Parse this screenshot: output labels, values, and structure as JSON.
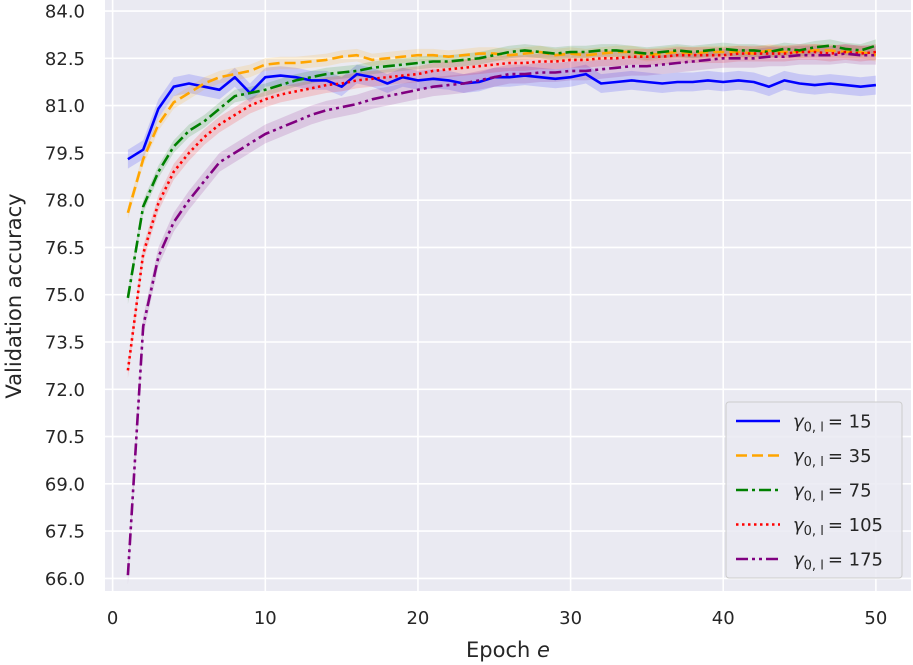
{
  "chart_data": {
    "type": "line",
    "xlabel": "Epoch",
    "xlabel_var": "e",
    "ylabel": "Validation accuracy",
    "xlim": [
      -0.5,
      52.3
    ],
    "ylim": [
      65.6,
      84.35
    ],
    "xticks": [
      0,
      10,
      20,
      30,
      40,
      50
    ],
    "xtick_labels": [
      "0",
      "10",
      "20",
      "30",
      "40",
      "50"
    ],
    "yticks": [
      66.0,
      67.5,
      69.0,
      70.5,
      72.0,
      73.5,
      75.0,
      76.5,
      78.0,
      79.5,
      81.0,
      82.5,
      84.0
    ],
    "ytick_labels": [
      "66.0",
      "67.5",
      "69.0",
      "70.5",
      "72.0",
      "73.5",
      "75.0",
      "76.5",
      "78.0",
      "79.5",
      "81.0",
      "82.5",
      "84.0"
    ],
    "grid": true,
    "legend_position": "lower-right",
    "x": [
      1,
      2,
      3,
      4,
      5,
      6,
      7,
      8,
      9,
      10,
      11,
      12,
      13,
      14,
      15,
      16,
      17,
      18,
      19,
      20,
      21,
      22,
      23,
      24,
      25,
      26,
      27,
      28,
      29,
      30,
      31,
      32,
      33,
      34,
      35,
      36,
      37,
      38,
      39,
      40,
      41,
      42,
      43,
      44,
      45,
      46,
      47,
      48,
      49,
      50
    ],
    "series": [
      {
        "name": "γ0,l = 15",
        "label_prefix": "γ",
        "label_sub": "0, l",
        "label_value": "= 15",
        "color": "#0000ff",
        "dash": "",
        "band_width": 0.3,
        "values": [
          79.3,
          79.6,
          80.9,
          81.6,
          81.7,
          81.6,
          81.5,
          81.9,
          81.4,
          81.9,
          81.95,
          81.9,
          81.8,
          81.8,
          81.6,
          82.0,
          81.9,
          81.7,
          81.9,
          81.8,
          81.85,
          81.8,
          81.7,
          81.75,
          81.9,
          81.9,
          81.95,
          81.9,
          81.85,
          81.9,
          82.0,
          81.7,
          81.75,
          81.8,
          81.75,
          81.7,
          81.75,
          81.75,
          81.8,
          81.75,
          81.8,
          81.75,
          81.6,
          81.8,
          81.7,
          81.65,
          81.7,
          81.65,
          81.6,
          81.65
        ]
      },
      {
        "name": "γ0,l = 35",
        "label_prefix": "γ",
        "label_sub": "0, l",
        "label_value": "= 35",
        "color": "#ffa500",
        "dash": "11,5",
        "band_width": 0.2,
        "values": [
          77.6,
          79.3,
          80.4,
          81.1,
          81.4,
          81.7,
          81.9,
          82.0,
          82.1,
          82.3,
          82.35,
          82.35,
          82.4,
          82.45,
          82.55,
          82.6,
          82.45,
          82.5,
          82.55,
          82.6,
          82.6,
          82.55,
          82.6,
          82.65,
          82.65,
          82.6,
          82.65,
          82.7,
          82.6,
          82.65,
          82.6,
          82.65,
          82.7,
          82.7,
          82.6,
          82.65,
          82.7,
          82.65,
          82.7,
          82.7,
          82.7,
          82.65,
          82.75,
          82.7,
          82.7,
          82.75,
          82.75,
          82.7,
          82.7,
          82.6
        ]
      },
      {
        "name": "γ0,l = 75",
        "label_prefix": "γ",
        "label_sub": "0, l",
        "label_value": "= 75",
        "color": "#008000",
        "dash": "12,4,3,4",
        "band_width": 0.2,
        "values": [
          74.9,
          77.8,
          78.9,
          79.7,
          80.2,
          80.5,
          80.9,
          81.3,
          81.4,
          81.5,
          81.65,
          81.8,
          81.9,
          82.0,
          82.05,
          82.1,
          82.2,
          82.25,
          82.3,
          82.35,
          82.4,
          82.4,
          82.45,
          82.5,
          82.6,
          82.7,
          82.75,
          82.7,
          82.65,
          82.7,
          82.7,
          82.75,
          82.75,
          82.7,
          82.65,
          82.7,
          82.75,
          82.7,
          82.75,
          82.8,
          82.75,
          82.75,
          82.7,
          82.8,
          82.75,
          82.85,
          82.9,
          82.8,
          82.75,
          82.9
        ]
      },
      {
        "name": "γ0,l = 105",
        "label_prefix": "γ",
        "label_sub": "0, l",
        "label_value": "= 105",
        "color": "#ff0000",
        "dash": "2.5,3.5",
        "band_width": 0.25,
        "values": [
          72.6,
          76.3,
          77.9,
          78.9,
          79.5,
          80.0,
          80.4,
          80.7,
          81.0,
          81.2,
          81.35,
          81.45,
          81.55,
          81.65,
          81.7,
          81.8,
          81.85,
          81.9,
          81.95,
          82.0,
          82.1,
          82.15,
          82.2,
          82.25,
          82.3,
          82.35,
          82.35,
          82.4,
          82.4,
          82.45,
          82.45,
          82.5,
          82.5,
          82.55,
          82.55,
          82.55,
          82.6,
          82.6,
          82.6,
          82.6,
          82.65,
          82.65,
          82.65,
          82.65,
          82.7,
          82.7,
          82.65,
          82.7,
          82.65,
          82.7
        ]
      },
      {
        "name": "γ0,l = 175",
        "label_prefix": "γ",
        "label_sub": "0, l",
        "label_value": "= 175",
        "color": "#800080",
        "dash": "12,4,3,4,3,4",
        "band_width": 0.3,
        "values": [
          66.1,
          74.0,
          76.2,
          77.3,
          78.0,
          78.6,
          79.2,
          79.5,
          79.8,
          80.1,
          80.3,
          80.5,
          80.7,
          80.85,
          80.95,
          81.05,
          81.2,
          81.3,
          81.4,
          81.5,
          81.6,
          81.65,
          81.7,
          81.8,
          81.9,
          82.0,
          82.0,
          82.05,
          82.05,
          82.1,
          82.1,
          82.15,
          82.2,
          82.25,
          82.25,
          82.3,
          82.35,
          82.4,
          82.45,
          82.5,
          82.5,
          82.5,
          82.55,
          82.55,
          82.6,
          82.6,
          82.6,
          82.65,
          82.6,
          82.6
        ]
      }
    ]
  }
}
